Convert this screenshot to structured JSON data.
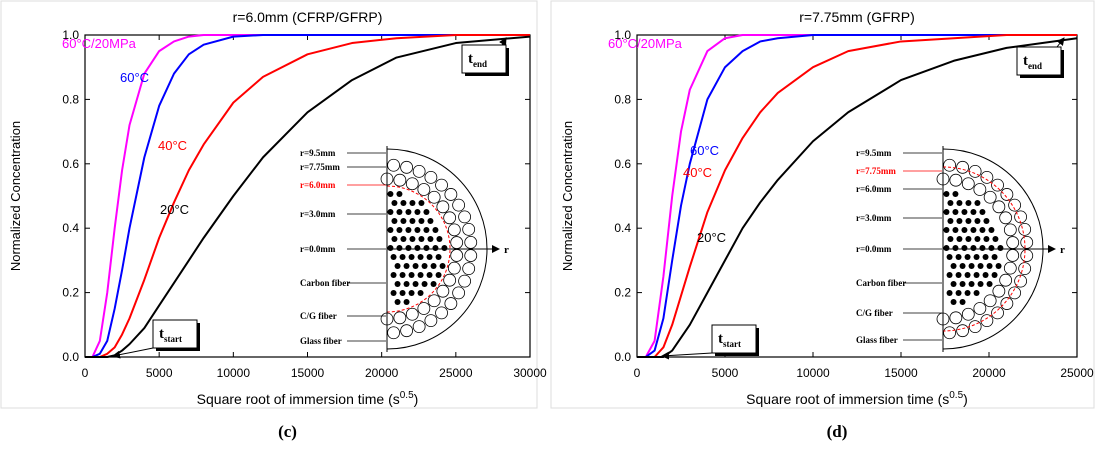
{
  "chart_data": [
    {
      "type": "line",
      "title": "r=6.0mm (CFRP/GFRP)",
      "panel_label": "(c)",
      "xlabel": {
        "text": "Square root of immersion time (s",
        "sup": "0.5",
        "end": ")"
      },
      "ylabel": "Normalized Concentration",
      "x": [
        0,
        500,
        1000,
        1500,
        2000,
        2500,
        3000,
        4000,
        5000,
        6000,
        7000,
        8000,
        10000,
        12000,
        15000,
        18000,
        21000,
        25000,
        30000
      ],
      "series": [
        {
          "name": "60°C/20MPa",
          "color": "#ff00ff",
          "values": [
            0,
            0,
            0.05,
            0.2,
            0.4,
            0.58,
            0.72,
            0.88,
            0.95,
            0.98,
            0.995,
            1,
            1,
            1,
            1,
            1,
            1,
            1,
            1
          ]
        },
        {
          "name": "60°C",
          "color": "#0000ff",
          "values": [
            0,
            0,
            0.01,
            0.05,
            0.15,
            0.27,
            0.4,
            0.62,
            0.78,
            0.88,
            0.94,
            0.97,
            0.995,
            1,
            1,
            1,
            1,
            1,
            1
          ]
        },
        {
          "name": "40°C",
          "color": "#ff0000",
          "values": [
            0,
            0,
            0,
            0.01,
            0.03,
            0.07,
            0.12,
            0.24,
            0.37,
            0.48,
            0.58,
            0.66,
            0.79,
            0.87,
            0.94,
            0.975,
            0.99,
            1,
            1
          ]
        },
        {
          "name": "20°C",
          "color": "#000000",
          "values": [
            0,
            0,
            0,
            0,
            0.005,
            0.02,
            0.04,
            0.09,
            0.16,
            0.23,
            0.3,
            0.37,
            0.5,
            0.62,
            0.76,
            0.86,
            0.93,
            0.975,
            0.995
          ]
        }
      ],
      "xlim": [
        0,
        30000
      ],
      "xticks": [
        0,
        5000,
        10000,
        15000,
        20000,
        25000,
        30000
      ],
      "ylim": [
        0,
        1
      ],
      "yticks": [
        {
          "value": 0,
          "label": "0.0"
        },
        {
          "value": 0.2,
          "label": "0.2"
        },
        {
          "value": 0.4,
          "label": "0.4"
        },
        {
          "value": 0.6,
          "label": "0.6"
        },
        {
          "value": 0.8,
          "label": "0.8"
        },
        {
          "value": 1,
          "label": "1.0"
        }
      ],
      "annotations": [
        {
          "text": "t",
          "sub": "start"
        },
        {
          "text": "t",
          "sub": "end"
        }
      ],
      "inset": {
        "labels": [
          "r=9.5mm",
          "r=7.75mm",
          "r=6.0mm",
          "r=3.0mm",
          "r=0.0mm",
          "Carbon fiber",
          "C/G fiber",
          "Glass fiber"
        ],
        "highlight": 2,
        "highlight_color": "#ff0000",
        "axis_label": "r"
      }
    },
    {
      "type": "line",
      "title": "r=7.75mm (GFRP)",
      "panel_label": "(d)",
      "xlabel": {
        "text": "Square root of immersion time (s",
        "sup": "0.5",
        "end": ")"
      },
      "ylabel": "Normalized Concentration",
      "x": [
        0,
        500,
        1000,
        1500,
        2000,
        2500,
        3000,
        4000,
        5000,
        6000,
        7000,
        8000,
        10000,
        12000,
        15000,
        18000,
        21000,
        25000
      ],
      "series": [
        {
          "name": "60°C/20MPa",
          "color": "#ff00ff",
          "values": [
            0,
            0,
            0.05,
            0.25,
            0.5,
            0.7,
            0.83,
            0.95,
            0.99,
            1,
            1,
            1,
            1,
            1,
            1,
            1,
            1,
            1
          ]
        },
        {
          "name": "60°C",
          "color": "#0000ff",
          "values": [
            0,
            0,
            0.02,
            0.12,
            0.3,
            0.47,
            0.6,
            0.8,
            0.9,
            0.95,
            0.98,
            0.99,
            1,
            1,
            1,
            1,
            1,
            1
          ]
        },
        {
          "name": "40°C",
          "color": "#ff0000",
          "values": [
            0,
            0,
            0,
            0.03,
            0.1,
            0.19,
            0.28,
            0.45,
            0.58,
            0.68,
            0.76,
            0.82,
            0.9,
            0.95,
            0.98,
            0.99,
            1,
            1
          ]
        },
        {
          "name": "20°C",
          "color": "#000000",
          "values": [
            0,
            0,
            0,
            0,
            0.02,
            0.06,
            0.1,
            0.2,
            0.3,
            0.4,
            0.48,
            0.55,
            0.67,
            0.76,
            0.86,
            0.92,
            0.96,
            0.99
          ]
        }
      ],
      "xlim": [
        0,
        25000
      ],
      "xticks": [
        0,
        5000,
        10000,
        15000,
        20000,
        25000
      ],
      "ylim": [
        0,
        1
      ],
      "yticks": [
        {
          "value": 0,
          "label": "0.0"
        },
        {
          "value": 0.2,
          "label": "0.2"
        },
        {
          "value": 0.4,
          "label": "0.4"
        },
        {
          "value": 0.6,
          "label": "0.6"
        },
        {
          "value": 0.8,
          "label": "0.8"
        },
        {
          "value": 1,
          "label": "1.0"
        }
      ],
      "annotations": [
        {
          "text": "t",
          "sub": "start"
        },
        {
          "text": "t",
          "sub": "end"
        }
      ],
      "inset": {
        "labels": [
          "r=9.5mm",
          "r=7.75mm",
          "r=6.0mm",
          "r=3.0mm",
          "r=0.0mm",
          "Carbon fiber",
          "C/G fiber",
          "Glass fiber"
        ],
        "highlight": 1,
        "highlight_color": "#ff0000",
        "axis_label": "r"
      }
    }
  ]
}
